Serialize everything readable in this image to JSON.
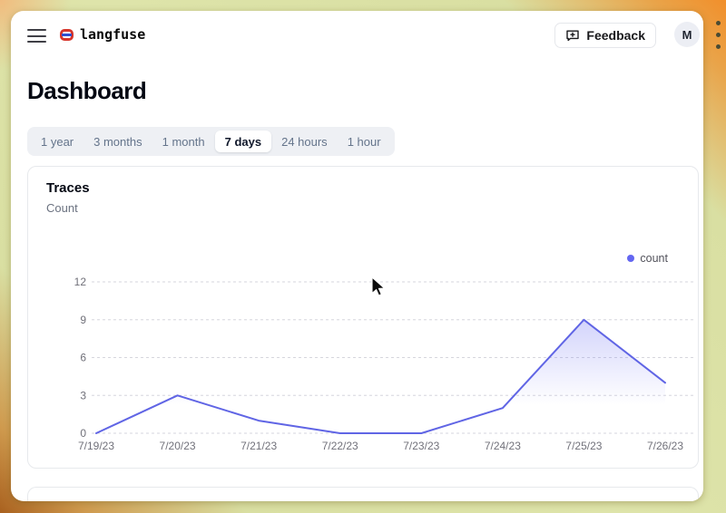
{
  "header": {
    "logo_text": "langfuse",
    "feedback_label": "Feedback",
    "avatar_initial": "M"
  },
  "page": {
    "title": "Dashboard"
  },
  "time_tabs": {
    "items": [
      {
        "label": "1 year",
        "selected": false
      },
      {
        "label": "3 months",
        "selected": false
      },
      {
        "label": "1 month",
        "selected": false
      },
      {
        "label": "7 days",
        "selected": true
      },
      {
        "label": "24 hours",
        "selected": false
      },
      {
        "label": "1 hour",
        "selected": false
      }
    ]
  },
  "traces_card": {
    "title": "Traces",
    "subtitle": "Count",
    "legend": {
      "label": "count",
      "color": "#6366f1"
    }
  },
  "chart_data": {
    "type": "area",
    "title": "Traces",
    "ylabel": "Count",
    "x": [
      "7/19/23",
      "7/20/23",
      "7/21/23",
      "7/22/23",
      "7/23/23",
      "7/24/23",
      "7/25/23",
      "7/26/23"
    ],
    "series": [
      {
        "name": "count",
        "values": [
          0,
          3,
          1,
          0,
          0,
          2,
          9,
          4
        ]
      }
    ],
    "ylim": [
      0,
      12
    ],
    "yticks": [
      0,
      3,
      6,
      9,
      12
    ],
    "grid": "horizontal-dashed",
    "legend_position": "top-right",
    "line_color": "#6065e5",
    "fill_color": "#6366f1",
    "fill_opacity_top": 0.28,
    "grid_color": "#d6d6dd",
    "axis_text_color": "#71717a"
  },
  "theme": {
    "frame_olive": "#dce2a6",
    "frame_orange": "#f18f2b",
    "accent_indigo": "#6366f1"
  }
}
